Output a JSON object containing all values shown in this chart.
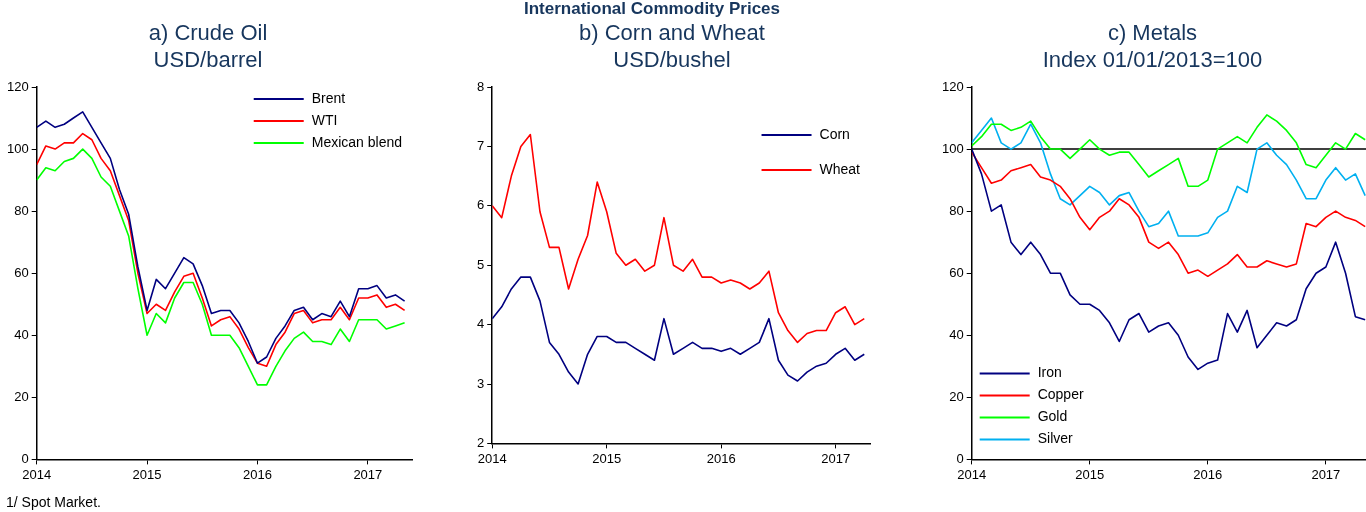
{
  "chart_data": [
    {
      "type": "line",
      "title": "a) Crude Oil",
      "subtitle": "USD/barrel",
      "annotations": [
        "1/ Spot Market."
      ],
      "legend": "top right",
      "grid": false,
      "marker": "none",
      "line_style": "solid",
      "xlim": [
        2014,
        2017.4
      ],
      "xticks": [
        2014,
        2015,
        2016,
        2017
      ],
      "ylim": [
        0,
        120
      ],
      "yticks": [
        0,
        20,
        40,
        60,
        80,
        100,
        120
      ],
      "x": [
        2014,
        2014.083,
        2014.167,
        2014.25,
        2014.333,
        2014.417,
        2014.5,
        2014.583,
        2014.667,
        2014.75,
        2014.833,
        2014.917,
        2015,
        2015.083,
        2015.167,
        2015.25,
        2015.333,
        2015.417,
        2015.5,
        2015.583,
        2015.667,
        2015.75,
        2015.833,
        2015.917,
        2016,
        2016.083,
        2016.167,
        2016.25,
        2016.333,
        2016.417,
        2016.5,
        2016.583,
        2016.667,
        2016.75,
        2016.833,
        2016.917,
        2017,
        2017.083,
        2017.167,
        2017.25,
        2017.333
      ],
      "series": [
        {
          "name": "Brent",
          "color": "#000080",
          "values": [
            107,
            109,
            107,
            108,
            110,
            112,
            107,
            102,
            97,
            87,
            79,
            62,
            48,
            58,
            55,
            60,
            65,
            63,
            56,
            47,
            48,
            48,
            44,
            38,
            31,
            33,
            39,
            43,
            48,
            49,
            45,
            47,
            46,
            51,
            46,
            55,
            55,
            56,
            52,
            53,
            51
          ]
        },
        {
          "name": "WTI",
          "color": "#ff0000",
          "values": [
            95,
            101,
            100,
            102,
            102,
            105,
            103,
            97,
            93,
            85,
            77,
            60,
            47,
            50,
            48,
            54,
            59,
            60,
            52,
            43,
            45,
            46,
            42,
            36,
            31,
            30,
            37,
            41,
            47,
            48,
            44,
            45,
            45,
            49,
            45,
            52,
            52,
            53,
            49,
            50,
            48
          ]
        },
        {
          "name": "Mexican blend",
          "color": "#00ff00",
          "values": [
            90,
            94,
            93,
            96,
            97,
            100,
            97,
            91,
            88,
            80,
            72,
            55,
            40,
            47,
            44,
            52,
            57,
            57,
            50,
            40,
            40,
            40,
            36,
            30,
            24,
            24,
            30,
            35,
            39,
            41,
            38,
            38,
            37,
            42,
            38,
            45,
            45,
            45,
            42,
            43,
            44
          ]
        }
      ]
    },
    {
      "type": "line",
      "title": "b) Corn and Wheat",
      "subtitle": "USD/bushel",
      "annotations": [
        "International Commodity Prices"
      ],
      "legend": "top right",
      "grid": false,
      "marker": "none",
      "line_style": "solid",
      "xlim": [
        2014,
        2017.3
      ],
      "xticks": [
        2014,
        2015,
        2016,
        2017
      ],
      "ylim": [
        2,
        8
      ],
      "yticks": [
        2,
        3,
        4,
        5,
        6,
        7,
        8
      ],
      "x": [
        2014,
        2014.083,
        2014.167,
        2014.25,
        2014.333,
        2014.417,
        2014.5,
        2014.583,
        2014.667,
        2014.75,
        2014.833,
        2014.917,
        2015,
        2015.083,
        2015.167,
        2015.25,
        2015.333,
        2015.417,
        2015.5,
        2015.583,
        2015.667,
        2015.75,
        2015.833,
        2015.917,
        2016,
        2016.083,
        2016.167,
        2016.25,
        2016.333,
        2016.417,
        2016.5,
        2016.583,
        2016.667,
        2016.75,
        2016.833,
        2016.917,
        2017,
        2017.083,
        2017.167,
        2017.25
      ],
      "series": [
        {
          "name": "Corn",
          "color": "#000080",
          "values": [
            4.1,
            4.3,
            4.6,
            4.8,
            4.8,
            4.4,
            3.7,
            3.5,
            3.2,
            3.0,
            3.5,
            3.8,
            3.8,
            3.7,
            3.7,
            3.6,
            3.5,
            3.4,
            4.1,
            3.5,
            3.6,
            3.7,
            3.6,
            3.6,
            3.55,
            3.6,
            3.5,
            3.6,
            3.7,
            4.1,
            3.4,
            3.15,
            3.05,
            3.2,
            3.3,
            3.35,
            3.5,
            3.6,
            3.4,
            3.5
          ]
        },
        {
          "name": "Wheat",
          "color": "#ff0000",
          "values": [
            6.0,
            5.8,
            6.5,
            7.0,
            7.2,
            5.9,
            5.3,
            5.3,
            4.6,
            5.1,
            5.5,
            6.4,
            5.9,
            5.2,
            5.0,
            5.1,
            4.9,
            5.0,
            5.8,
            5.0,
            4.9,
            5.1,
            4.8,
            4.8,
            4.7,
            4.75,
            4.7,
            4.6,
            4.7,
            4.9,
            4.2,
            3.9,
            3.7,
            3.85,
            3.9,
            3.9,
            4.2,
            4.3,
            4.0,
            4.1
          ]
        }
      ]
    },
    {
      "type": "line",
      "title": "c) Metals",
      "subtitle": "Index 01/01/2013=100",
      "legend": "bottom left",
      "grid": false,
      "marker": "none",
      "line_style": "solid",
      "xlim": [
        2014,
        2017.34
      ],
      "xticks": [
        2014,
        2015,
        2016,
        2017
      ],
      "ylim": [
        0,
        120
      ],
      "yticks": [
        0,
        20,
        40,
        60,
        80,
        100,
        120
      ],
      "ref_lines": [
        {
          "axis": "y",
          "value": 100,
          "color": "#000000"
        }
      ],
      "x": [
        2014,
        2014.083,
        2014.167,
        2014.25,
        2014.333,
        2014.417,
        2014.5,
        2014.583,
        2014.667,
        2014.75,
        2014.833,
        2014.917,
        2015,
        2015.083,
        2015.167,
        2015.25,
        2015.333,
        2015.417,
        2015.5,
        2015.583,
        2015.667,
        2015.75,
        2015.833,
        2015.917,
        2016,
        2016.083,
        2016.167,
        2016.25,
        2016.333,
        2016.417,
        2016.5,
        2016.583,
        2016.667,
        2016.75,
        2016.833,
        2016.917,
        2017,
        2017.083,
        2017.167,
        2017.25,
        2017.333
      ],
      "series": [
        {
          "name": "Iron",
          "color": "#000080",
          "values": [
            100,
            92,
            80,
            82,
            70,
            66,
            70,
            66,
            60,
            60,
            53,
            50,
            50,
            48,
            44,
            38,
            45,
            47,
            41,
            43,
            44,
            40,
            33,
            29,
            31,
            32,
            47,
            41,
            48,
            36,
            40,
            44,
            43,
            45,
            55,
            60,
            62,
            70,
            60,
            46,
            45
          ]
        },
        {
          "name": "Copper",
          "color": "#ff0000",
          "values": [
            99,
            94,
            89,
            90,
            93,
            94,
            95,
            91,
            90,
            88,
            84,
            78,
            74,
            78,
            80,
            84,
            82,
            78,
            70,
            68,
            70,
            66,
            60,
            61,
            59,
            61,
            63,
            66,
            62,
            62,
            64,
            63,
            62,
            63,
            76,
            75,
            78,
            80,
            78,
            77,
            75
          ]
        },
        {
          "name": "Gold",
          "color": "#00ff00",
          "values": [
            101,
            104,
            108,
            108,
            106,
            107,
            109,
            104,
            100,
            100,
            97,
            100,
            103,
            100,
            98,
            99,
            99,
            95,
            91,
            93,
            95,
            97,
            88,
            88,
            90,
            100,
            102,
            104,
            102,
            107,
            111,
            109,
            106,
            102,
            95,
            94,
            98,
            102,
            100,
            105,
            103
          ]
        },
        {
          "name": "Silver",
          "color": "#00b0f0",
          "values": [
            102,
            106,
            110,
            102,
            100,
            102,
            108,
            102,
            92,
            84,
            82,
            85,
            88,
            86,
            82,
            85,
            86,
            80,
            75,
            76,
            80,
            72,
            72,
            72,
            73,
            78,
            80,
            88,
            86,
            100,
            102,
            98,
            95,
            90,
            84,
            84,
            90,
            94,
            90,
            92,
            85
          ]
        }
      ]
    }
  ]
}
